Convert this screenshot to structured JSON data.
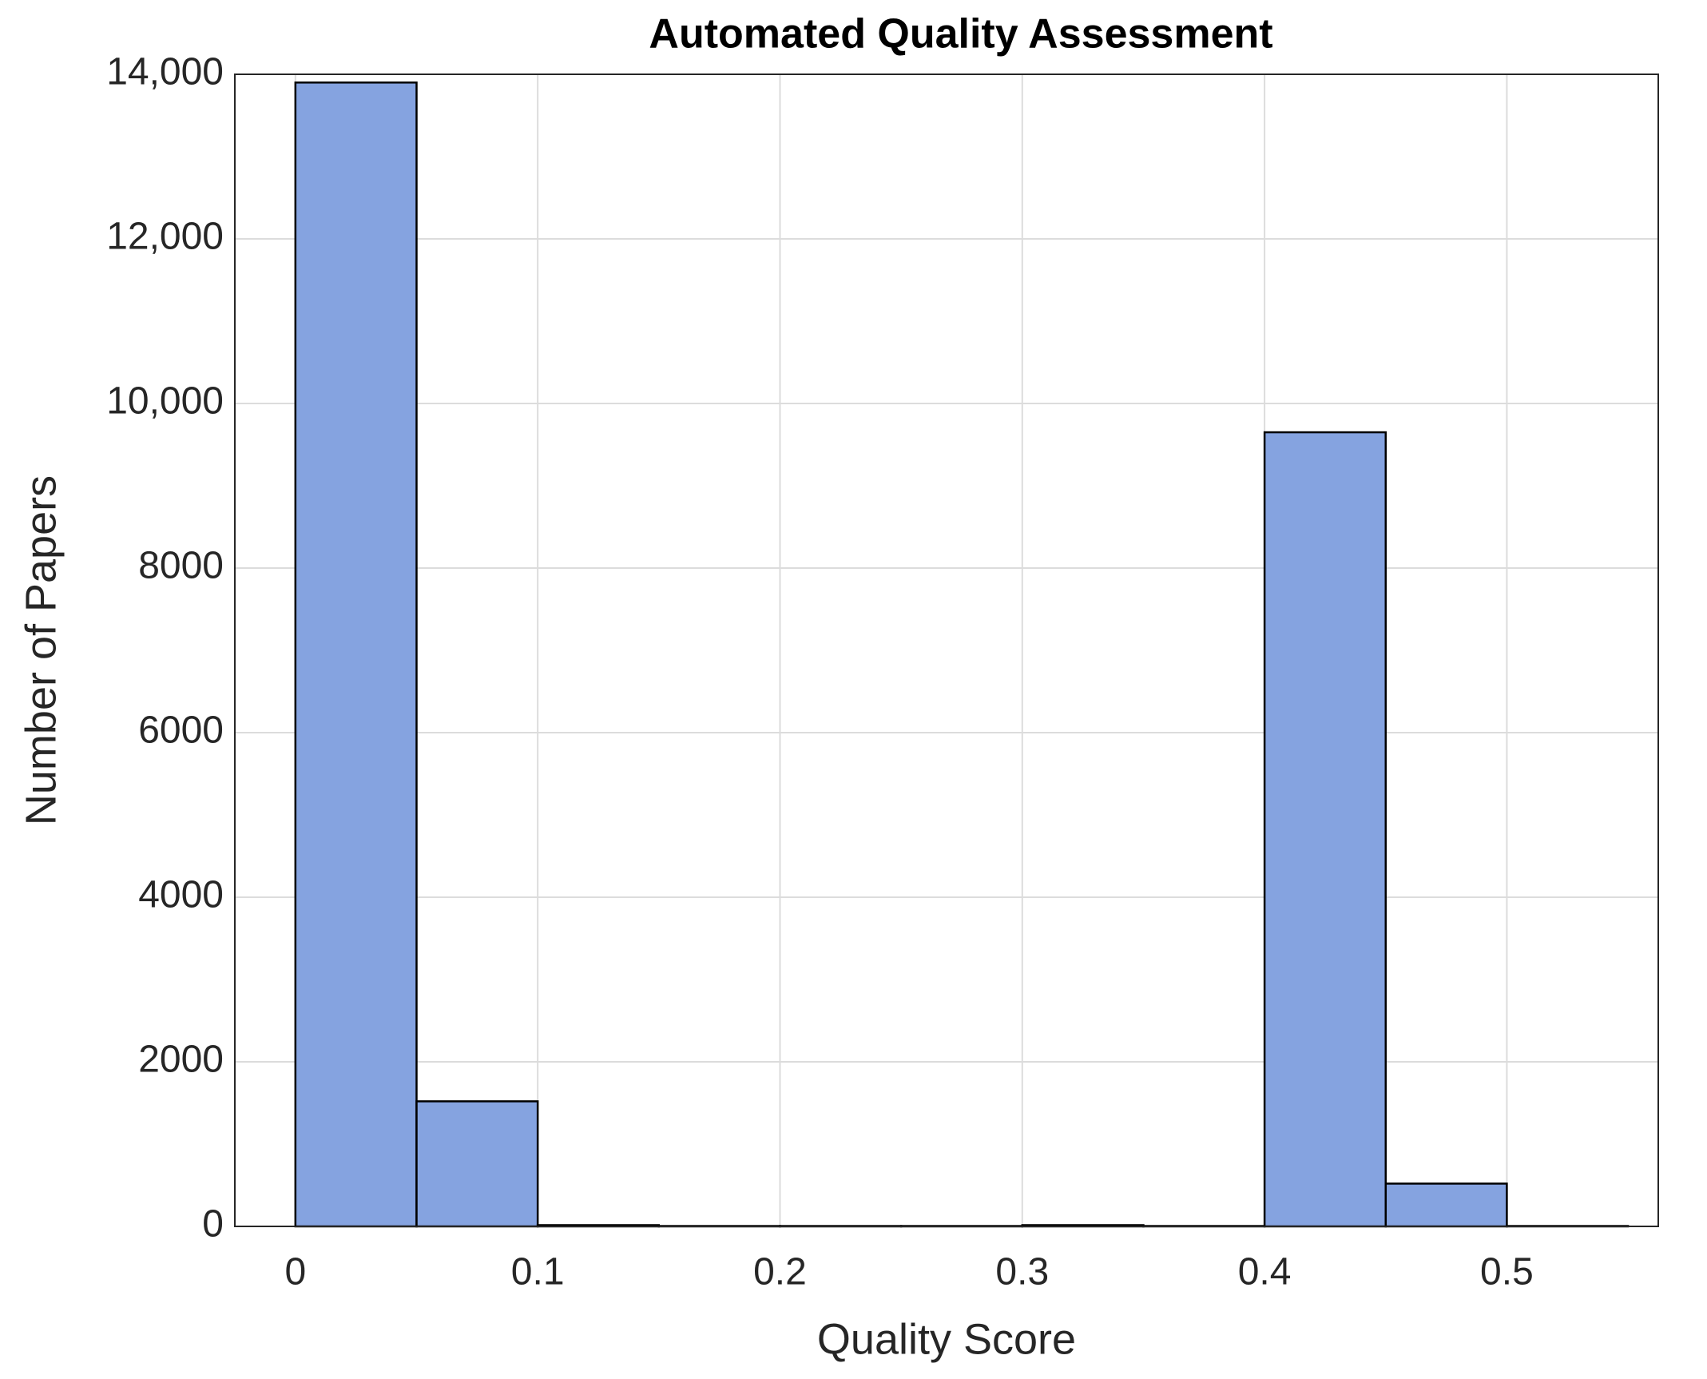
{
  "chart_data": {
    "type": "histogram",
    "title": "Automated Quality Assessment",
    "x_label": "Quality Score",
    "y_label": "Number of Papers",
    "bins": [
      0,
      0.05,
      0.1,
      0.15,
      0.2,
      0.25,
      0.3,
      0.35,
      0.4,
      0.45,
      0.5,
      0.55
    ],
    "values": [
      13900,
      1520,
      15,
      5,
      5,
      5,
      15,
      5,
      9650,
      520,
      5
    ],
    "color": "#85a3e0",
    "edgecolor": "#000000",
    "xlim": [
      -0.025,
      0.5625
    ],
    "ylim": [
      0,
      14000
    ],
    "xticks": [
      0,
      0.1,
      0.2,
      0.3,
      0.4,
      0.5
    ],
    "yticks": [
      0,
      2000,
      4000,
      6000,
      8000,
      {
        "value": 10000,
        "label": "10,000"
      },
      {
        "value": 12000,
        "label": "12,000"
      },
      {
        "value": 14000,
        "label": "14,000"
      }
    ],
    "grid": true
  }
}
